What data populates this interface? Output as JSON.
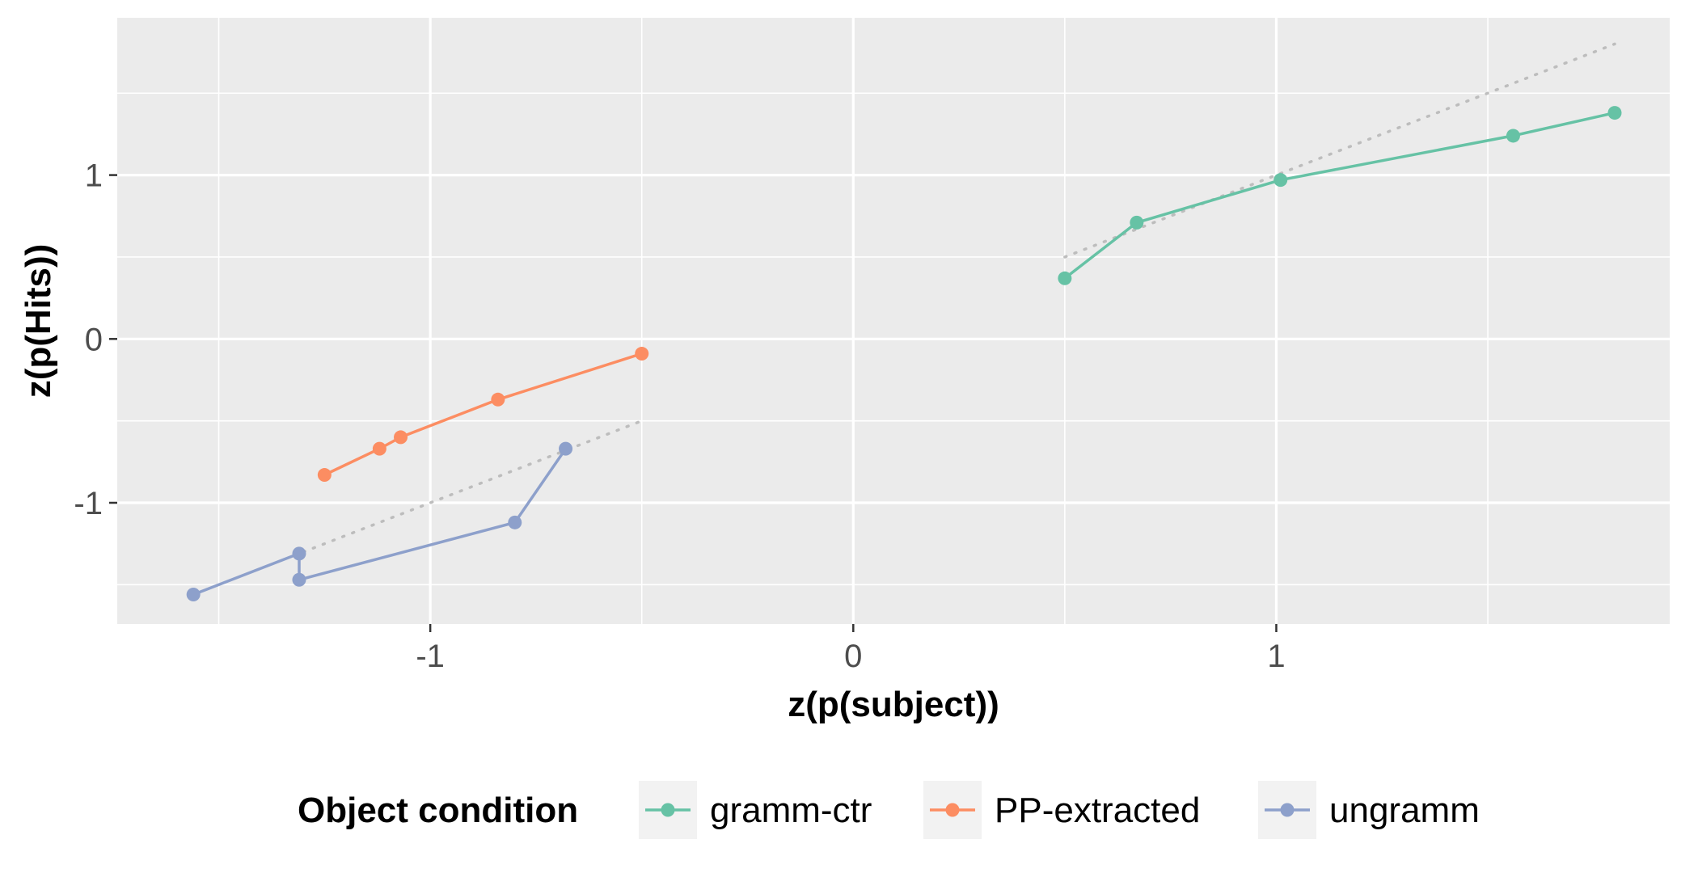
{
  "chart_data": {
    "type": "line",
    "xlabel": "z(p(subject))",
    "ylabel": "z(p(Hits))",
    "xlim": [
      -1.74,
      1.93
    ],
    "ylim": [
      -1.74,
      1.96
    ],
    "x_ticks": [
      -1,
      0,
      1
    ],
    "y_ticks": [
      -1,
      0,
      1
    ],
    "grid": true,
    "legend_position": "bottom",
    "legend_title": "Object condition",
    "reference_lines": [
      {
        "x": [
          0.5,
          1.8
        ],
        "y": [
          0.5,
          1.8
        ],
        "color": "#bdbdbd",
        "style": "dotted"
      },
      {
        "x": [
          -1.3,
          -0.5
        ],
        "y": [
          -1.3,
          -0.5
        ],
        "color": "#bdbdbd",
        "style": "dotted"
      }
    ],
    "series": [
      {
        "name": "gramm-ctr",
        "color": "#66c2a5",
        "points": [
          [
            0.5,
            0.37
          ],
          [
            0.67,
            0.71
          ],
          [
            1.01,
            0.97
          ],
          [
            1.56,
            1.24
          ],
          [
            1.8,
            1.38
          ]
        ]
      },
      {
        "name": "PP-extracted",
        "color": "#fc8d62",
        "points": [
          [
            -1.25,
            -0.83
          ],
          [
            -1.12,
            -0.67
          ],
          [
            -1.07,
            -0.6
          ],
          [
            -0.84,
            -0.37
          ],
          [
            -0.5,
            -0.09
          ]
        ]
      },
      {
        "name": "ungramm",
        "color": "#8da0cb",
        "points": [
          [
            -1.56,
            -1.56
          ],
          [
            -1.31,
            -1.31
          ],
          [
            -1.31,
            -1.47
          ],
          [
            -0.8,
            -1.12
          ],
          [
            -0.68,
            -0.67
          ]
        ]
      }
    ]
  }
}
